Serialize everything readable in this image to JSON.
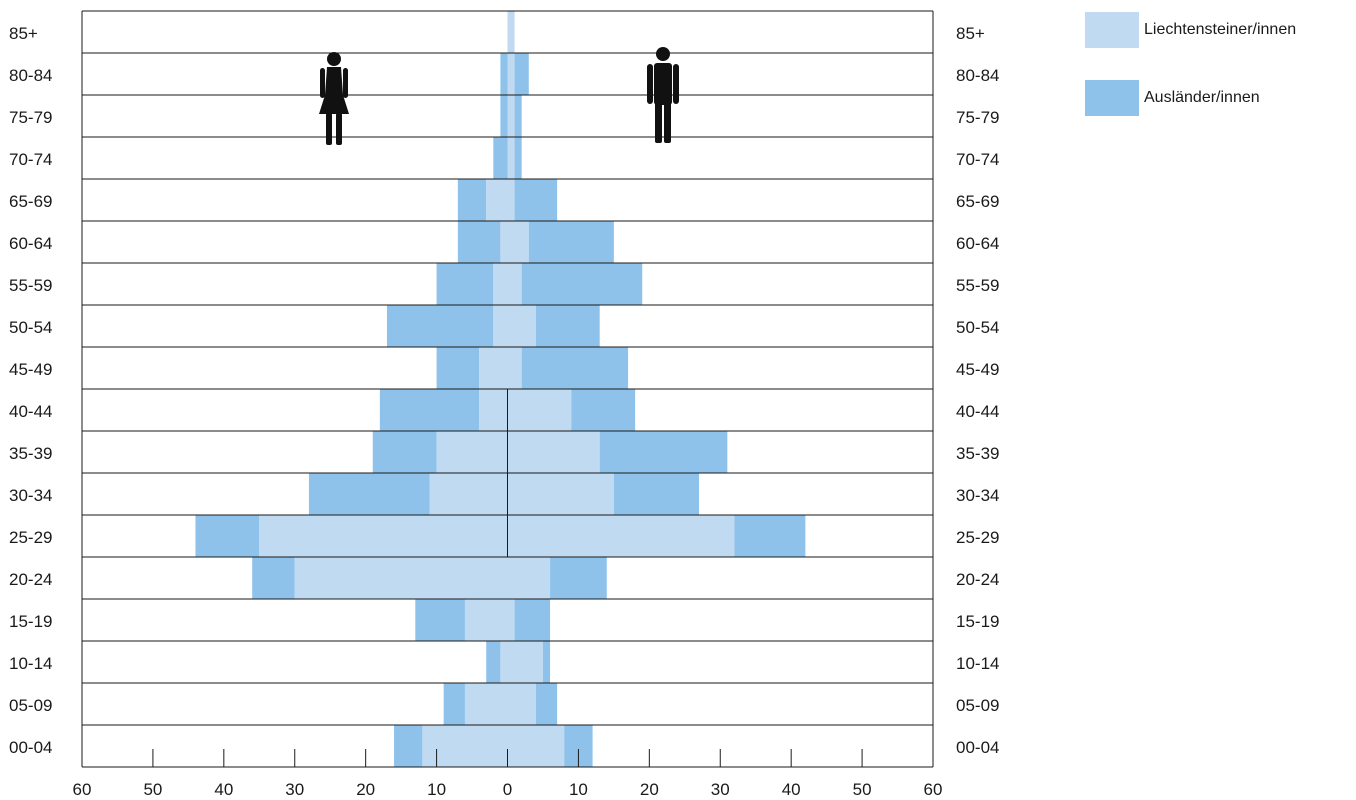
{
  "chart_data": {
    "type": "bar",
    "subtype": "population-pyramid",
    "orientation": "horizontal",
    "categories": [
      "85+",
      "80-84",
      "75-79",
      "70-74",
      "65-69",
      "60-64",
      "55-59",
      "50-54",
      "45-49",
      "40-44",
      "35-39",
      "30-34",
      "25-29",
      "20-24",
      "15-19",
      "10-14",
      "05-09",
      "00-04"
    ],
    "left_icon": "female-icon",
    "right_icon": "male-icon",
    "series": [
      {
        "name": "Liechtensteiner/innen",
        "color": "#c0daf2",
        "women": [
          0,
          0,
          0,
          0,
          3,
          1,
          2,
          2,
          4,
          4,
          10,
          11,
          35,
          30,
          6,
          1,
          6,
          12
        ],
        "men": [
          1,
          1,
          1,
          1,
          1,
          3,
          2,
          4,
          2,
          9,
          13,
          15,
          32,
          6,
          1,
          5,
          4,
          8
        ]
      },
      {
        "name": "Ausländer/innen",
        "color": "#8ec2eb",
        "women": [
          0,
          1,
          1,
          2,
          4,
          6,
          8,
          15,
          6,
          14,
          9,
          17,
          9,
          6,
          7,
          2,
          3,
          4
        ],
        "men": [
          0,
          2,
          1,
          1,
          6,
          12,
          17,
          9,
          15,
          9,
          18,
          12,
          10,
          8,
          5,
          1,
          3,
          4
        ]
      }
    ],
    "x_ticks": [
      "60",
      "50",
      "40",
      "30",
      "20",
      "10",
      "0",
      "10",
      "20",
      "30",
      "40",
      "50",
      "60"
    ],
    "xlim": [
      -60,
      60
    ],
    "legend_position": "top-right"
  }
}
